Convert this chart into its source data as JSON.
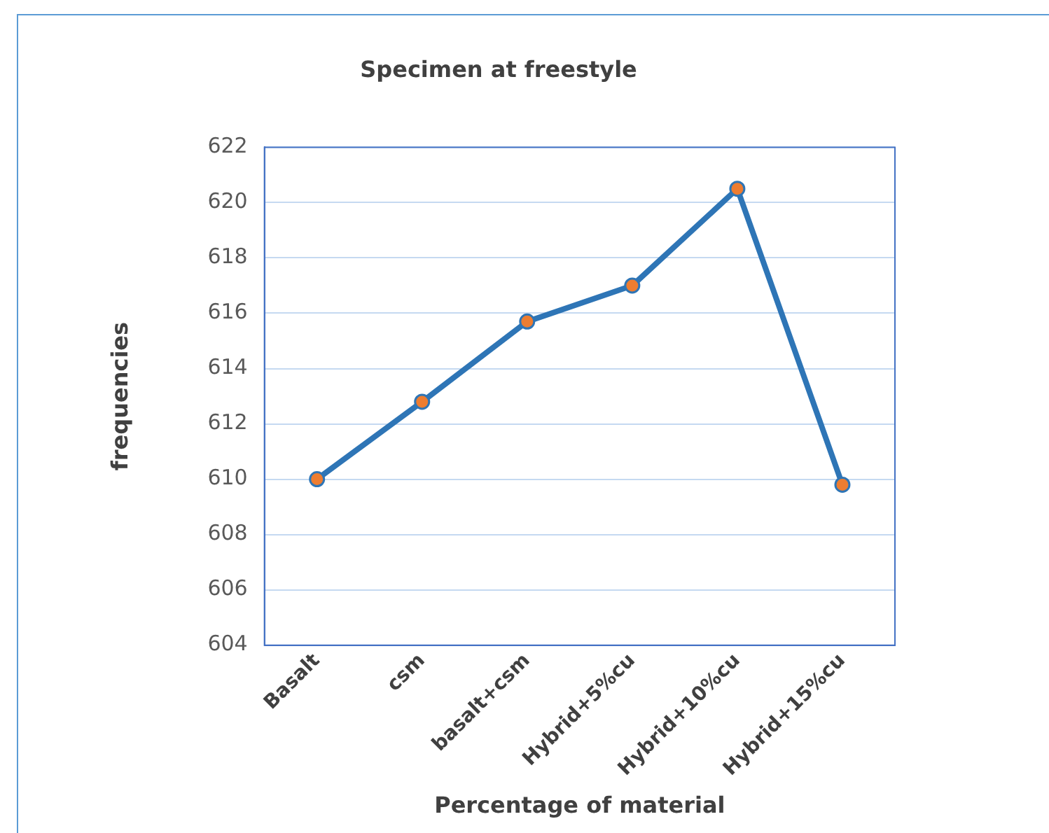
{
  "chart_data": {
    "type": "line",
    "title": "Specimen at freestyle",
    "xlabel": "Percentage of material",
    "ylabel": "frequencies",
    "categories": [
      "Basalt",
      "csm",
      "basalt+csm",
      "Hybrid+5%cu",
      "Hybrid+10%cu",
      "Hybrid+15%cu"
    ],
    "series": [
      {
        "color": "#2e75b6",
        "colors": [
          "#ed7d31",
          "#ed7d31",
          "#ed7d31",
          "#ed7d31",
          "#ed7d31",
          "#ed7d31"
        ],
        "values": [
          610,
          612.8,
          615.7,
          617,
          620.5,
          609.8
        ]
      }
    ],
    "ylim": [
      604,
      622
    ],
    "yticks": [
      604,
      606,
      608,
      610,
      612,
      614,
      616,
      618,
      620,
      622
    ],
    "grid": "y",
    "legend": false,
    "marker": "circle",
    "line_style": "solid"
  }
}
